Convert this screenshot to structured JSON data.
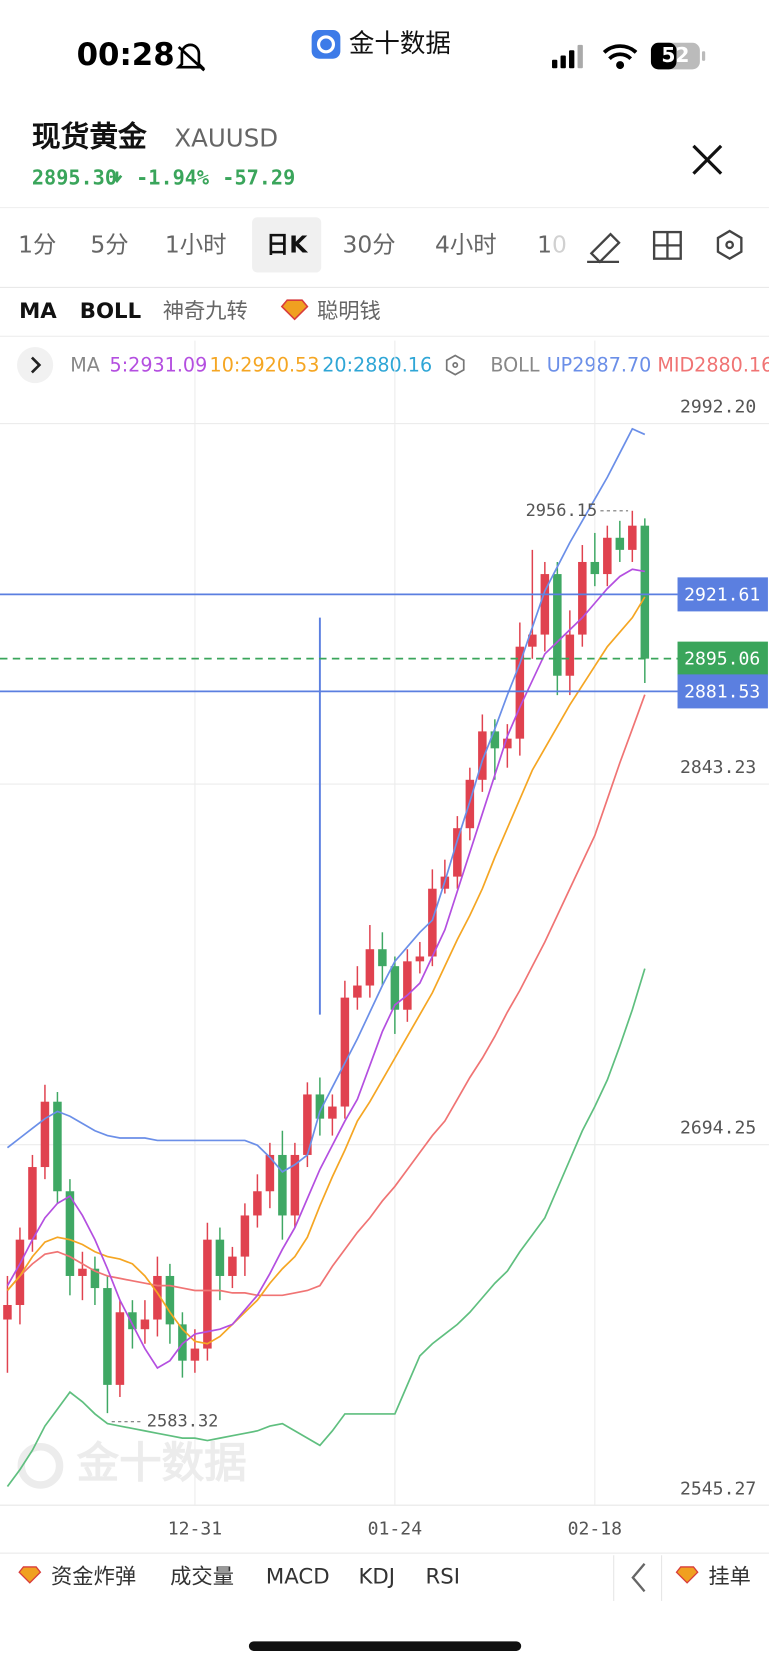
{
  "status_bar": {
    "time": "00:28",
    "app": "金十数据",
    "battery": "52"
  },
  "header": {
    "name": "现货黄金",
    "symbol": "XAUUSD",
    "price": "2895.30",
    "change_pct": "-1.94%",
    "change": "-57.29"
  },
  "tabs": [
    "1分",
    "5分",
    "1小时",
    "日K",
    "30分",
    "4小时",
    "10"
  ],
  "active_tab": 3,
  "indicators": [
    "MA",
    "BOLL",
    "神奇九转",
    "聪明钱"
  ],
  "indicator_legend": {
    "ma_label": "MA",
    "ma": [
      {
        "text": "5:2931.09",
        "color": "#b44fe0"
      },
      {
        "text": "10:2920.53",
        "color": "#f5a623"
      },
      {
        "text": "20:2880.16",
        "color": "#2fa6d6"
      }
    ],
    "boll_label": "BOLL",
    "boll": [
      {
        "text": "UP2987.70",
        "color": "#6b8fe8"
      },
      {
        "text": "MID2880.16",
        "color": "#f07474"
      }
    ]
  },
  "chart_data": {
    "type": "candlestick",
    "up_color": "#e0424f",
    "down_color": "#3fa864",
    "open": [
      2622,
      2628,
      2655,
      2685,
      2712,
      2675,
      2640,
      2643,
      2635,
      2595,
      2625,
      2618,
      2622,
      2640,
      2620,
      2605,
      2610,
      2655,
      2640,
      2648,
      2665,
      2675,
      2690,
      2665,
      2690,
      2715,
      2705,
      2710,
      2755,
      2760,
      2775,
      2768,
      2750,
      2770,
      2772,
      2800,
      2805,
      2825,
      2845,
      2865,
      2858,
      2862,
      2900,
      2905,
      2930,
      2888,
      2905,
      2935,
      2930,
      2945,
      2940,
      2950
    ],
    "high": [
      2640,
      2660,
      2690,
      2719,
      2716,
      2680,
      2650,
      2648,
      2640,
      2630,
      2630,
      2630,
      2648,
      2645,
      2625,
      2618,
      2662,
      2660,
      2652,
      2670,
      2682,
      2695,
      2700,
      2695,
      2720,
      2722,
      2715,
      2762,
      2768,
      2785,
      2782,
      2772,
      2775,
      2778,
      2808,
      2812,
      2830,
      2850,
      2872,
      2870,
      2868,
      2910,
      2940,
      2935,
      2935,
      2915,
      2942,
      2947,
      2950,
      2952,
      2956.15,
      2953
    ],
    "low": [
      2600,
      2620,
      2650,
      2680,
      2670,
      2632,
      2630,
      2628,
      2583.32,
      2590,
      2610,
      2612,
      2615,
      2612,
      2598,
      2600,
      2605,
      2630,
      2635,
      2640,
      2660,
      2668,
      2655,
      2660,
      2685,
      2698,
      2698,
      2705,
      2750,
      2755,
      2760,
      2740,
      2745,
      2765,
      2768,
      2798,
      2800,
      2820,
      2840,
      2845,
      2850,
      2855,
      2895,
      2898,
      2880,
      2880,
      2900,
      2925,
      2925,
      2935,
      2935,
      2885
    ],
    "close": [
      2628,
      2655,
      2685,
      2712,
      2675,
      2640,
      2643,
      2635,
      2595,
      2625,
      2618,
      2622,
      2640,
      2620,
      2605,
      2610,
      2655,
      2640,
      2648,
      2665,
      2675,
      2690,
      2665,
      2690,
      2715,
      2705,
      2710,
      2755,
      2760,
      2775,
      2768,
      2750,
      2770,
      2772,
      2800,
      2805,
      2825,
      2845,
      2865,
      2858,
      2862,
      2900,
      2905,
      2930,
      2888,
      2905,
      2935,
      2930,
      2945,
      2940,
      2950,
      2895.06
    ],
    "lines": [
      {
        "color": "#6b8fe8",
        "values": [
          2693,
          2697,
          2701,
          2705,
          2708,
          2706,
          2703,
          2700,
          2698,
          2697,
          2697,
          2697,
          2696,
          2696,
          2696,
          2696,
          2696,
          2696,
          2696,
          2696,
          2694,
          2689,
          2683,
          2686,
          2690,
          2708,
          2718,
          2728,
          2738,
          2749,
          2760,
          2770,
          2776,
          2782,
          2787,
          2803,
          2820,
          2836,
          2853,
          2866,
          2880,
          2893,
          2908,
          2923,
          2933,
          2943,
          2952,
          2961,
          2970,
          2980,
          2990,
          2987.7
        ]
      },
      {
        "color": "#f07474",
        "values": [
          2634,
          2640,
          2645,
          2649,
          2650,
          2648,
          2645,
          2642,
          2640,
          2639,
          2638,
          2637,
          2636,
          2636,
          2635,
          2634,
          2634,
          2634,
          2633,
          2633,
          2632,
          2632,
          2632,
          2633,
          2634,
          2636,
          2644,
          2651,
          2658,
          2664,
          2671,
          2677,
          2684,
          2691,
          2698,
          2704,
          2713,
          2722,
          2730,
          2739,
          2749,
          2758,
          2768,
          2778,
          2789,
          2800,
          2811,
          2822,
          2837,
          2852,
          2866,
          2880.16
        ]
      },
      {
        "color": "#5fbf7f",
        "values": [
          2553,
          2560,
          2568,
          2578,
          2585,
          2592,
          2588,
          2583,
          2579,
          2578,
          2577,
          2576,
          2575,
          2574,
          2573,
          2573,
          2572,
          2573,
          2574,
          2575,
          2576,
          2578,
          2579,
          2576,
          2573,
          2570,
          2576,
          2583,
          2583,
          2583,
          2583,
          2583,
          2595,
          2607,
          2612,
          2616,
          2620,
          2625,
          2631,
          2637,
          2642,
          2650,
          2657,
          2664,
          2676,
          2688,
          2700,
          2710,
          2721,
          2735,
          2750,
          2767
        ]
      },
      {
        "color": "#f5a623",
        "values": [
          2634,
          2640,
          2648,
          2654,
          2656,
          2655,
          2653,
          2650,
          2648,
          2647,
          2645,
          2640,
          2633,
          2625,
          2618,
          2613,
          2612,
          2615,
          2620,
          2625,
          2630,
          2637,
          2643,
          2648,
          2656,
          2669,
          2681,
          2692,
          2704,
          2712,
          2721,
          2730,
          2739,
          2748,
          2757,
          2768,
          2779,
          2789,
          2800,
          2813,
          2825,
          2837,
          2849,
          2858,
          2867,
          2876,
          2884,
          2892,
          2900,
          2906,
          2912,
          2920.53
        ]
      },
      {
        "color": "#b44fe0",
        "values": [
          2636,
          2645,
          2655,
          2664,
          2670,
          2673,
          2665,
          2655,
          2643,
          2630,
          2620,
          2610,
          2602,
          2605,
          2612,
          2616,
          2617,
          2618,
          2620,
          2626,
          2632,
          2641,
          2651,
          2660,
          2672,
          2684,
          2694,
          2704,
          2713,
          2727,
          2741,
          2752,
          2756,
          2761,
          2772,
          2783,
          2799,
          2815,
          2831,
          2847,
          2863,
          2875,
          2886,
          2897,
          2902,
          2907,
          2912,
          2918,
          2924,
          2929,
          2932,
          2931.09
        ]
      }
    ],
    "ylim": [
      2545.27,
      3006.7
    ],
    "yticks": [
      {
        "value": 2992.2,
        "label": "2992.20"
      },
      {
        "value": 2843.23,
        "label": "2843.23"
      },
      {
        "value": 2694.25,
        "label": "2694.25"
      },
      {
        "value": 2545.27,
        "label": "2545.27"
      }
    ],
    "xticks": [
      {
        "value": 15,
        "label": "12-31"
      },
      {
        "value": 31,
        "label": "01-24"
      },
      {
        "value": 47,
        "label": "02-18"
      }
    ],
    "price_lines": [
      {
        "value": 2921.61,
        "color": "#5b7fe0",
        "dashed": false
      },
      {
        "value": 2895.06,
        "color": "#3aa55b",
        "dashed": true
      },
      {
        "value": 2881.53,
        "color": "#5b7fe0",
        "dashed": false
      }
    ],
    "max_label": {
      "index": 50,
      "value": 2956.15
    },
    "min_label": {
      "index": 8,
      "value": 2583.32
    },
    "vline": {
      "index": 25,
      "from": 2912,
      "to": 2748
    },
    "grid": true,
    "watermark": "金十数据"
  },
  "bottom_bar": {
    "items": [
      "资金炸弹",
      "成交量",
      "MACD",
      "KDJ",
      "RSI"
    ],
    "order": "挂单"
  }
}
